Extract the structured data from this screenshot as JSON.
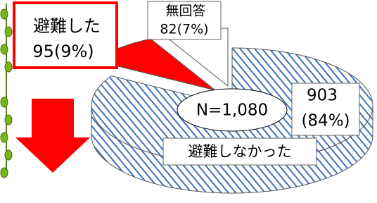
{
  "chart_data": {
    "type": "pie",
    "categories": [
      "避難しなかった",
      "避難した",
      "無回答"
    ],
    "values": [
      903,
      95,
      82
    ],
    "value_labels": [
      [
        "903",
        "(84%)"
      ],
      [
        "95(9%)"
      ],
      [
        "82(7%)"
      ]
    ],
    "colors": [
      "#3f72b8",
      "#ff0000",
      "#ffffff"
    ],
    "hatched": [
      true,
      false,
      false
    ],
    "annotation": "N=1,080"
  }
}
